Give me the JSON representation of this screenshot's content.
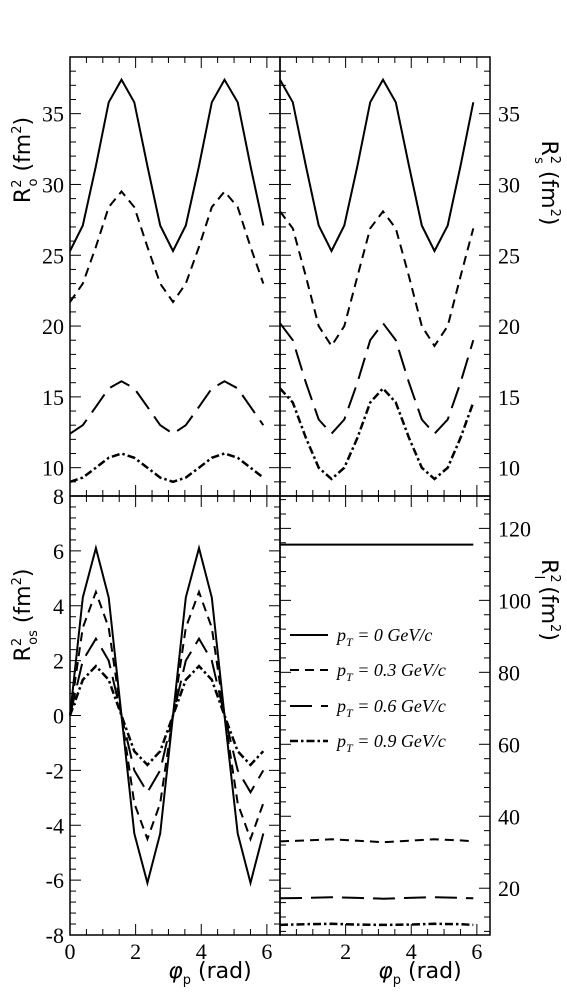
{
  "chart_data": [
    {
      "type": "line",
      "panel": "top-left",
      "ylabel": "R²o (fm²)",
      "xlim": [
        0,
        6.4
      ],
      "ylim": [
        8,
        39
      ],
      "yticks": [
        "10",
        "15",
        "20",
        "25",
        "30",
        "35"
      ],
      "ytick_values": [
        10,
        15,
        20,
        25,
        30,
        35
      ],
      "series": [
        {
          "name": "p_T = 0 GeV/c",
          "x": [
            0,
            0.39,
            0.79,
            1.18,
            1.57,
            1.96,
            2.36,
            2.75,
            3.14,
            3.53,
            3.93,
            4.32,
            4.71,
            5.11,
            5.5,
            5.89
          ],
          "y": [
            25.3,
            27.1,
            31.3,
            35.8,
            37.4,
            35.8,
            31.3,
            27.1,
            25.3,
            27.1,
            31.3,
            35.8,
            37.4,
            35.8,
            31.3,
            27.1
          ]
        },
        {
          "name": "p_T = 0.3 GeV/c",
          "x": [
            0,
            0.39,
            0.79,
            1.18,
            1.57,
            1.96,
            2.36,
            2.75,
            3.14,
            3.53,
            3.93,
            4.32,
            4.71,
            5.11,
            5.5,
            5.89
          ],
          "y": [
            21.7,
            23.0,
            25.6,
            28.4,
            29.5,
            28.4,
            25.6,
            23.0,
            21.7,
            23.0,
            25.6,
            28.4,
            29.5,
            28.4,
            25.6,
            23.0
          ]
        },
        {
          "name": "p_T = 0.6 GeV/c",
          "x": [
            0,
            0.39,
            0.79,
            1.18,
            1.57,
            1.96,
            2.36,
            2.75,
            3.14,
            3.53,
            3.93,
            4.32,
            4.71,
            5.11,
            5.5,
            5.89
          ],
          "y": [
            12.4,
            13.0,
            14.3,
            15.6,
            16.1,
            15.6,
            14.3,
            13.0,
            12.4,
            13.0,
            14.3,
            15.6,
            16.1,
            15.6,
            14.3,
            13.0
          ]
        },
        {
          "name": "p_T = 0.9 GeV/c",
          "x": [
            0,
            0.39,
            0.79,
            1.18,
            1.57,
            1.96,
            2.36,
            2.75,
            3.14,
            3.53,
            3.93,
            4.32,
            4.71,
            5.11,
            5.5,
            5.89
          ],
          "y": [
            9.0,
            9.3,
            10.0,
            10.7,
            11.0,
            10.7,
            10.0,
            9.3,
            9.0,
            9.3,
            10.0,
            10.7,
            11.0,
            10.7,
            10.0,
            9.3
          ]
        }
      ]
    },
    {
      "type": "line",
      "panel": "top-right",
      "ylabel": "R²s (fm²)",
      "xlim": [
        0,
        6.4
      ],
      "ylim": [
        8,
        39
      ],
      "yticks": [
        "10",
        "15",
        "20",
        "25",
        "30",
        "35"
      ],
      "ytick_values": [
        10,
        15,
        20,
        25,
        30,
        35
      ],
      "series": [
        {
          "name": "p_T = 0 GeV/c",
          "x": [
            0,
            0.39,
            0.79,
            1.18,
            1.57,
            1.96,
            2.36,
            2.75,
            3.14,
            3.53,
            3.93,
            4.32,
            4.71,
            5.11,
            5.5,
            5.89
          ],
          "y": [
            37.4,
            35.8,
            31.3,
            27.1,
            25.3,
            27.1,
            31.3,
            35.8,
            37.4,
            35.8,
            31.3,
            27.1,
            25.3,
            27.1,
            31.3,
            35.8
          ]
        },
        {
          "name": "p_T = 0.3 GeV/c",
          "x": [
            0,
            0.39,
            0.79,
            1.18,
            1.57,
            1.96,
            2.36,
            2.75,
            3.14,
            3.53,
            3.93,
            4.32,
            4.71,
            5.11,
            5.5,
            5.89
          ],
          "y": [
            28.1,
            26.9,
            23.5,
            20.0,
            18.6,
            20.0,
            23.5,
            26.9,
            28.1,
            26.9,
            23.5,
            20.0,
            18.6,
            20.0,
            23.5,
            26.9
          ]
        },
        {
          "name": "p_T = 0.6 GeV/c",
          "x": [
            0,
            0.39,
            0.79,
            1.18,
            1.57,
            1.96,
            2.36,
            2.75,
            3.14,
            3.53,
            3.93,
            4.32,
            4.71,
            5.11,
            5.5,
            5.89
          ],
          "y": [
            20.2,
            19.0,
            16.0,
            13.4,
            12.4,
            13.4,
            16.0,
            19.0,
            20.2,
            19.0,
            16.0,
            13.4,
            12.4,
            13.4,
            16.0,
            19.0
          ]
        },
        {
          "name": "p_T = 0.9 GeV/c",
          "x": [
            0,
            0.39,
            0.79,
            1.18,
            1.57,
            1.96,
            2.36,
            2.75,
            3.14,
            3.53,
            3.93,
            4.32,
            4.71,
            5.11,
            5.5,
            5.89
          ],
          "y": [
            15.6,
            14.6,
            12.1,
            10.0,
            9.2,
            10.0,
            12.1,
            14.6,
            15.6,
            14.6,
            12.1,
            10.0,
            9.2,
            10.0,
            12.1,
            14.6
          ]
        }
      ]
    },
    {
      "type": "line",
      "panel": "bottom-left",
      "ylabel": "R²os (fm²)",
      "xlabel": "φp (rad)",
      "xlim": [
        0,
        6.4
      ],
      "ylim": [
        -8,
        8
      ],
      "xticks": [
        "0",
        "2",
        "4",
        "6"
      ],
      "xtick_values": [
        0,
        2,
        4,
        6
      ],
      "yticks": [
        "-8",
        "-6",
        "-4",
        "-2",
        "0",
        "2",
        "4",
        "6"
      ],
      "ytick_values": [
        -8,
        -6,
        -4,
        -2,
        0,
        2,
        4,
        6
      ],
      "series": [
        {
          "name": "p_T = 0 GeV/c",
          "x": [
            0,
            0.39,
            0.79,
            1.18,
            1.57,
            1.96,
            2.36,
            2.75,
            3.14,
            3.53,
            3.93,
            4.32,
            4.71,
            5.11,
            5.5,
            5.89
          ],
          "y": [
            0.0,
            4.3,
            6.1,
            4.3,
            0.0,
            -4.3,
            -6.1,
            -4.3,
            0.0,
            4.3,
            6.1,
            4.3,
            0.0,
            -4.3,
            -6.1,
            -4.3
          ]
        },
        {
          "name": "p_T = 0.3 GeV/c",
          "x": [
            0,
            0.39,
            0.79,
            1.18,
            1.57,
            1.96,
            2.36,
            2.75,
            3.14,
            3.53,
            3.93,
            4.32,
            4.71,
            5.11,
            5.5,
            5.89
          ],
          "y": [
            0.0,
            3.2,
            4.5,
            3.2,
            0.0,
            -3.2,
            -4.5,
            -3.2,
            0.0,
            3.2,
            4.5,
            3.2,
            0.0,
            -3.2,
            -4.5,
            -3.2
          ]
        },
        {
          "name": "p_T = 0.6 GeV/c",
          "x": [
            0,
            0.39,
            0.79,
            1.18,
            1.57,
            1.96,
            2.36,
            2.75,
            3.14,
            3.53,
            3.93,
            4.32,
            4.71,
            5.11,
            5.5,
            5.89
          ],
          "y": [
            0.0,
            2.0,
            2.8,
            2.0,
            0.0,
            -2.0,
            -2.8,
            -2.0,
            0.0,
            2.0,
            2.8,
            2.0,
            0.0,
            -2.0,
            -2.8,
            -2.0
          ]
        },
        {
          "name": "p_T = 0.9 GeV/c",
          "x": [
            0,
            0.39,
            0.79,
            1.18,
            1.57,
            1.96,
            2.36,
            2.75,
            3.14,
            3.53,
            3.93,
            4.32,
            4.71,
            5.11,
            5.5,
            5.89
          ],
          "y": [
            0.0,
            1.3,
            1.8,
            1.3,
            0.0,
            -1.3,
            -1.8,
            -1.3,
            0.0,
            1.3,
            1.8,
            1.3,
            0.0,
            -1.3,
            -1.8,
            -1.3
          ]
        }
      ]
    },
    {
      "type": "line",
      "panel": "bottom-right",
      "ylabel": "R²l (fm²)",
      "xlabel": "φp (rad)",
      "xlim": [
        0,
        6.4
      ],
      "ylim": [
        7,
        129
      ],
      "xticks": [
        "2",
        "4",
        "6"
      ],
      "xtick_values": [
        2,
        4,
        6
      ],
      "yticks": [
        "20",
        "40",
        "60",
        "80",
        "100",
        "120"
      ],
      "ytick_values": [
        20,
        40,
        60,
        80,
        100,
        120
      ],
      "legend": "center-right",
      "series": [
        {
          "name": "p_T = 0 GeV/c",
          "x": [
            0,
            0.79,
            1.57,
            2.36,
            3.14,
            3.93,
            4.71,
            5.5,
            5.89
          ],
          "y": [
            115.5,
            115.5,
            115.5,
            115.5,
            115.5,
            115.5,
            115.5,
            115.5,
            115.5
          ]
        },
        {
          "name": "p_T = 0.3 GeV/c",
          "x": [
            0,
            0.79,
            1.57,
            2.36,
            3.14,
            3.93,
            4.71,
            5.5,
            5.89
          ],
          "y": [
            33.0,
            33.3,
            33.6,
            33.2,
            32.8,
            33.2,
            33.6,
            33.3,
            33.0
          ]
        },
        {
          "name": "p_T = 0.6 GeV/c",
          "x": [
            0,
            0.79,
            1.57,
            2.36,
            3.14,
            3.93,
            4.71,
            5.5,
            5.89
          ],
          "y": [
            17.2,
            17.3,
            17.5,
            17.3,
            17.1,
            17.3,
            17.5,
            17.3,
            17.2
          ]
        },
        {
          "name": "p_T = 0.9 GeV/c",
          "x": [
            0,
            0.79,
            1.57,
            2.36,
            3.14,
            3.93,
            4.71,
            5.5,
            5.89
          ],
          "y": [
            9.8,
            10.0,
            10.1,
            9.9,
            9.8,
            9.9,
            10.1,
            10.0,
            9.8
          ]
        }
      ]
    }
  ],
  "legend_labels": [
    {
      "p": "p",
      "sub": "T",
      "rest": " = 0 GeV/c"
    },
    {
      "p": "p",
      "sub": "T",
      "rest": " = 0.3 GeV/c"
    },
    {
      "p": "p",
      "sub": "T",
      "rest": " = 0.6 GeV/c"
    },
    {
      "p": "p",
      "sub": "T",
      "rest": " = 0.9 GeV/c"
    }
  ],
  "axis_titles": {
    "top_left": {
      "base": "R",
      "sup": "2",
      "sub": "o",
      "unit": " (fm",
      "unit_sup": "2",
      "close": ")"
    },
    "top_right": {
      "base": "R",
      "sup": "2",
      "sub": "s",
      "unit": " (fm",
      "unit_sup": "2",
      "close": ")"
    },
    "bottom_left": {
      "base": "R",
      "sup": "2",
      "sub": "os",
      "unit": " (fm",
      "unit_sup": "2",
      "close": ")"
    },
    "bottom_right": {
      "base": "R",
      "sup": "2",
      "sub": "l",
      "unit": " (fm",
      "unit_sup": "2",
      "close": ")"
    },
    "x_left": {
      "base": "φ",
      "sub": "p",
      "rest": " (rad)"
    },
    "x_right": {
      "base": "φ",
      "sub": "p",
      "rest": " (rad)"
    }
  },
  "line_styles": [
    "solid",
    "short-dash",
    "long-dash",
    "dash-dot"
  ],
  "colors": {
    "line": "#000000",
    "background": "#ffffff"
  }
}
